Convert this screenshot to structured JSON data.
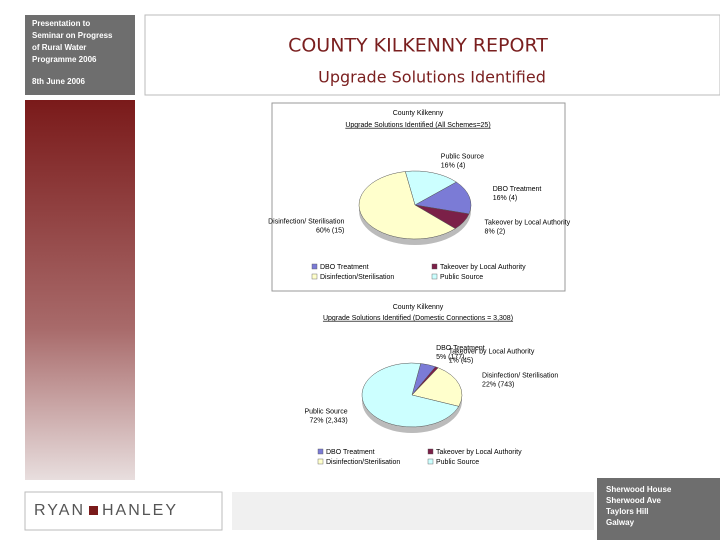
{
  "sidebar": {
    "lines": [
      "Presentation to",
      "Seminar on Progress",
      "of Rural Water",
      "Programme 2006"
    ],
    "date": "8th June 2006"
  },
  "header": {
    "title": "COUNTY KILKENNY REPORT",
    "subtitle": "Upgrade Solutions Identified"
  },
  "logo": {
    "left": "RYAN",
    "right": "HANLEY"
  },
  "address": [
    "Sherwood House",
    "Sherwood Ave",
    "Taylors Hill",
    "Galway"
  ],
  "chart_data": [
    {
      "type": "pie",
      "title": "County Kilkenny",
      "subtitle": "Upgrade Solutions Identified (All Schemes=25)",
      "categories": [
        "Public Source",
        "DBO Treatment",
        "Takeover by Local Authority",
        "Disinfection/ Sterilisation"
      ],
      "values": [
        16,
        16,
        8,
        60
      ],
      "value_labels": [
        "16% (4)",
        "16% (4)",
        "8% (2)",
        "60% (15)"
      ],
      "colors": [
        "#ccffff",
        "#7b7bd6",
        "#7b2048",
        "#ffffcc"
      ],
      "legend": [
        "DBO Treatment",
        "Takeover by Local Authority",
        "Disinfection/Sterilisation",
        "Public Source"
      ],
      "legend_colors": [
        "#7b7bd6",
        "#7b2048",
        "#ffffcc",
        "#ccffff"
      ]
    },
    {
      "type": "pie",
      "title": "County Kilkenny",
      "subtitle": "Upgrade Solutions Identified (Domestic Connections = 3,308)",
      "categories": [
        "DBO Treatment",
        "Takeover by Local Authority",
        "Disinfection/ Sterilisation",
        "Public Source"
      ],
      "values": [
        5,
        1,
        22,
        72
      ],
      "value_labels": [
        "5% (177)",
        "1% (45)",
        "22% (743)",
        "72% (2,343)"
      ],
      "colors": [
        "#7b7bd6",
        "#7b2048",
        "#ffffcc",
        "#ccffff"
      ],
      "legend": [
        "DBO Treatment",
        "Takeover by Local Authority",
        "Disinfection/Sterilisation",
        "Public Source"
      ],
      "legend_colors": [
        "#7b7bd6",
        "#7b2048",
        "#ffffcc",
        "#ccffff"
      ]
    }
  ]
}
